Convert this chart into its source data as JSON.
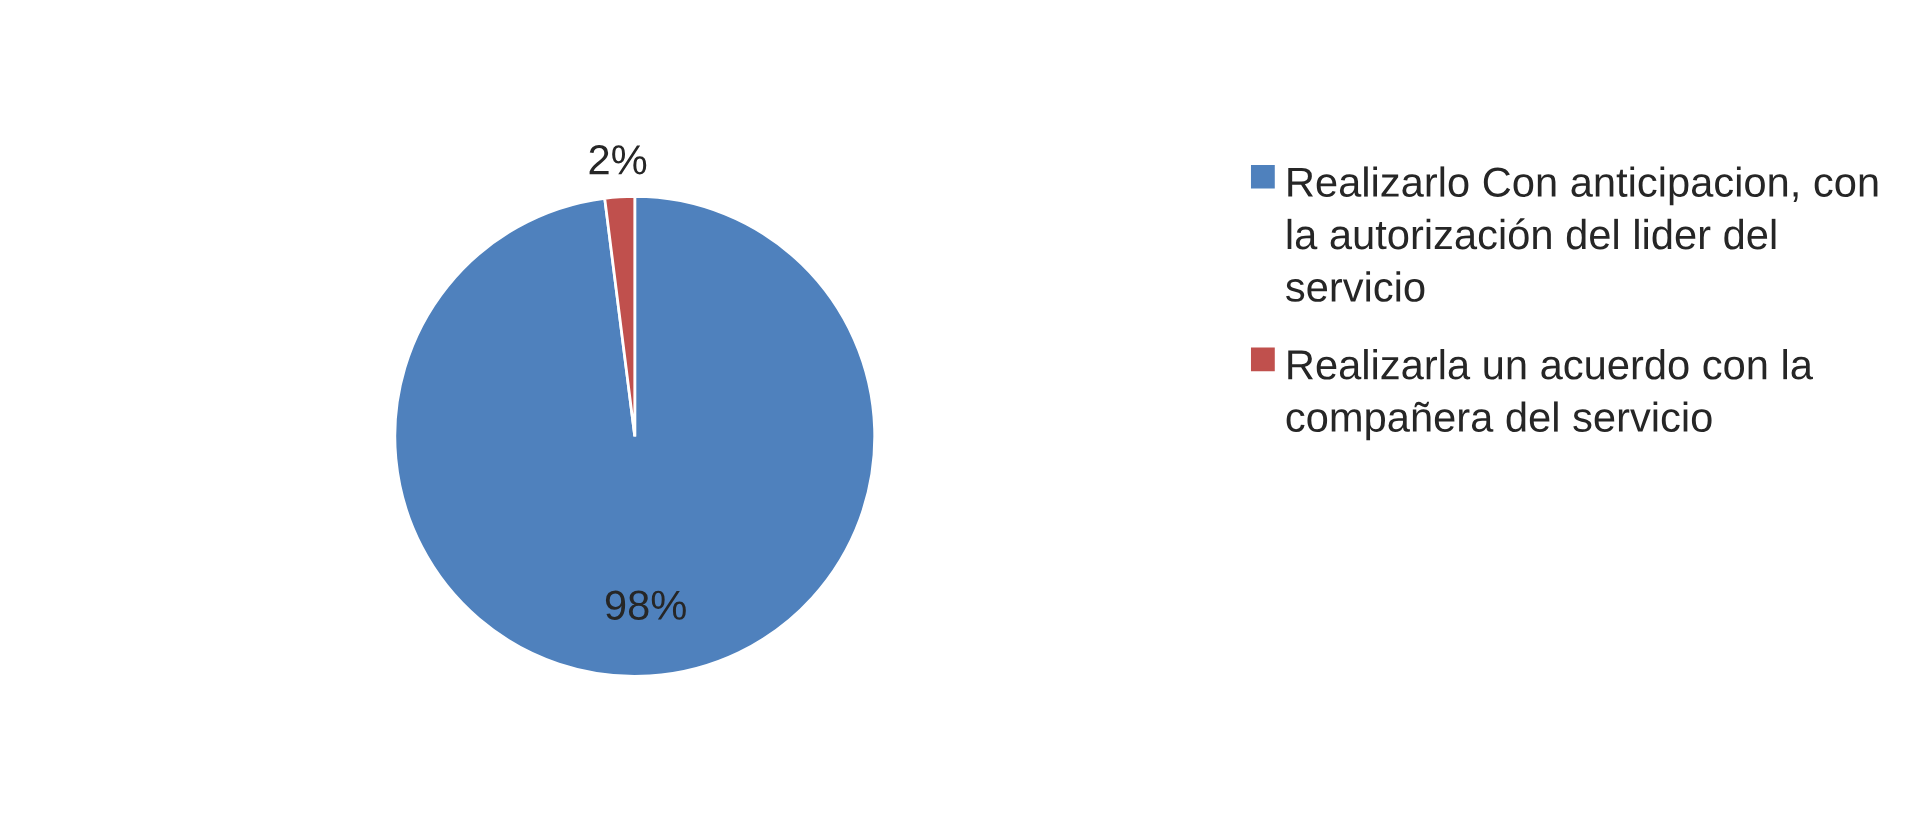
{
  "chart_data": {
    "type": "pie",
    "categories": [
      "Realizarlo Con anticipacion, con la autorización del lider del servicio",
      "Realizarla un acuerdo con la compañera del servicio"
    ],
    "values": [
      98,
      2
    ],
    "colors": [
      "#4f81bd",
      "#c0504d"
    ],
    "value_labels": [
      "98%",
      "2%"
    ],
    "legend": "right"
  }
}
